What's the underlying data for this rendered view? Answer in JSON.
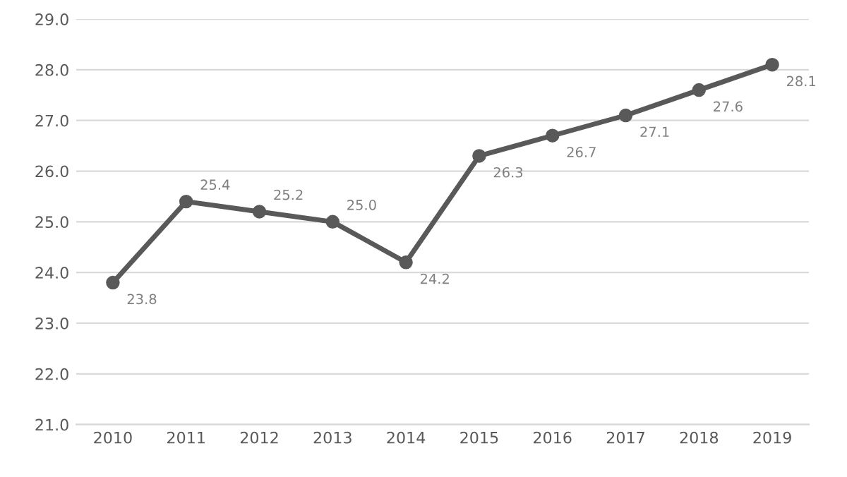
{
  "chart_data": {
    "type": "line",
    "categories": [
      "2010",
      "2011",
      "2012",
      "2013",
      "2014",
      "2015",
      "2016",
      "2017",
      "2018",
      "2019"
    ],
    "series": [
      {
        "color": "#595959",
        "values": [
          23.8,
          25.4,
          25.2,
          25.0,
          24.2,
          26.3,
          26.7,
          27.1,
          27.6,
          28.1
        ],
        "value_labels": [
          "23.8",
          "25.4",
          "25.2",
          "25.0",
          "24.2",
          "26.3",
          "26.7",
          "27.1",
          "27.6",
          "28.1"
        ]
      }
    ],
    "ylim": [
      21,
      29
    ],
    "yticks": [
      {
        "value": 21,
        "label": "21.0"
      },
      {
        "value": 22,
        "label": "22.0"
      },
      {
        "value": 23,
        "label": "23.0"
      },
      {
        "value": 24,
        "label": "24.0"
      },
      {
        "value": 25,
        "label": "25.0"
      },
      {
        "value": 26,
        "label": "26.0"
      },
      {
        "value": 27,
        "label": "27.0"
      },
      {
        "value": 28,
        "label": "28.0"
      },
      {
        "value": 29,
        "label": "29.0"
      }
    ],
    "grid": "y",
    "marker": "circle",
    "line_style": "solid"
  }
}
